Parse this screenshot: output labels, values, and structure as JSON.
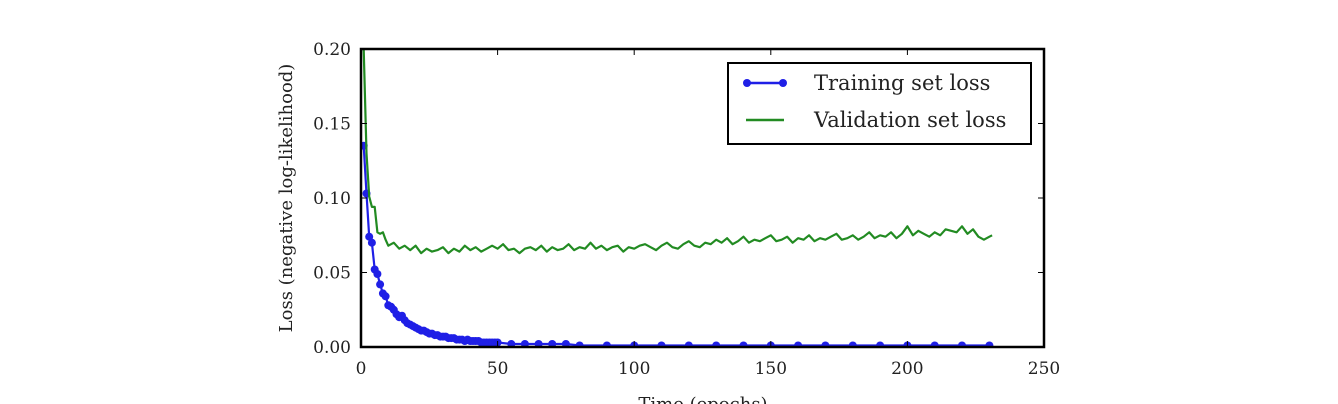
{
  "chart_data": {
    "type": "line",
    "xlabel": "Time (epochs)",
    "ylabel": "Loss (negative log-likelihood)",
    "xlim": [
      0,
      250
    ],
    "ylim": [
      0,
      0.2
    ],
    "x_ticks": [
      "0",
      "50",
      "100",
      "150",
      "200",
      "250"
    ],
    "y_ticks": [
      "0.00",
      "0.05",
      "0.10",
      "0.15",
      "0.20"
    ],
    "grid": false,
    "legend": "top-right",
    "series": [
      {
        "name": "Training set loss",
        "color": "#1f1fe6",
        "marker": "circle",
        "x": [
          1,
          2,
          3,
          4,
          5,
          6,
          7,
          8,
          9,
          10,
          11,
          12,
          13,
          14,
          15,
          16,
          17,
          18,
          19,
          20,
          21,
          22,
          23,
          24,
          25,
          26,
          27,
          28,
          29,
          30,
          31,
          32,
          33,
          34,
          35,
          36,
          37,
          38,
          39,
          40,
          41,
          42,
          43,
          44,
          45,
          46,
          47,
          48,
          49,
          50,
          55,
          60,
          65,
          70,
          75,
          80,
          90,
          100,
          110,
          120,
          130,
          140,
          150,
          160,
          170,
          180,
          190,
          200,
          210,
          220,
          230
        ],
        "y": [
          0.135,
          0.103,
          0.074,
          0.07,
          0.052,
          0.049,
          0.042,
          0.036,
          0.034,
          0.028,
          0.027,
          0.025,
          0.022,
          0.02,
          0.021,
          0.018,
          0.016,
          0.015,
          0.014,
          0.013,
          0.012,
          0.011,
          0.011,
          0.01,
          0.009,
          0.009,
          0.008,
          0.008,
          0.007,
          0.007,
          0.007,
          0.006,
          0.006,
          0.006,
          0.005,
          0.005,
          0.005,
          0.004,
          0.005,
          0.004,
          0.004,
          0.004,
          0.004,
          0.003,
          0.003,
          0.003,
          0.003,
          0.003,
          0.003,
          0.003,
          0.002,
          0.002,
          0.002,
          0.002,
          0.002,
          0.001,
          0.001,
          0.001,
          0.001,
          0.001,
          0.001,
          0.001,
          0.001,
          0.001,
          0.001,
          0.001,
          0.001,
          0.001,
          0.001,
          0.001,
          0.001
        ]
      },
      {
        "name": "Validation set loss",
        "color": "#228b22",
        "marker": "none",
        "x": [
          1,
          2,
          3,
          4,
          5,
          6,
          7,
          8,
          9,
          10,
          12,
          14,
          16,
          18,
          20,
          22,
          24,
          26,
          28,
          30,
          32,
          34,
          36,
          38,
          40,
          42,
          44,
          46,
          48,
          50,
          52,
          54,
          56,
          58,
          60,
          62,
          64,
          66,
          68,
          70,
          72,
          74,
          76,
          78,
          80,
          82,
          84,
          86,
          88,
          90,
          92,
          94,
          96,
          98,
          100,
          102,
          104,
          106,
          108,
          110,
          112,
          114,
          116,
          118,
          120,
          122,
          124,
          126,
          128,
          130,
          132,
          134,
          136,
          138,
          140,
          142,
          144,
          146,
          148,
          150,
          152,
          154,
          156,
          158,
          160,
          162,
          164,
          166,
          168,
          170,
          172,
          174,
          176,
          178,
          180,
          182,
          184,
          186,
          188,
          190,
          192,
          194,
          196,
          198,
          200,
          202,
          204,
          206,
          208,
          210,
          212,
          214,
          216,
          218,
          220,
          222,
          224,
          226,
          228,
          230,
          231
        ],
        "y": [
          0.2,
          0.13,
          0.101,
          0.094,
          0.094,
          0.077,
          0.076,
          0.077,
          0.072,
          0.068,
          0.07,
          0.066,
          0.068,
          0.065,
          0.068,
          0.063,
          0.066,
          0.064,
          0.065,
          0.067,
          0.063,
          0.066,
          0.064,
          0.068,
          0.065,
          0.067,
          0.064,
          0.066,
          0.068,
          0.066,
          0.069,
          0.065,
          0.066,
          0.063,
          0.066,
          0.067,
          0.065,
          0.068,
          0.064,
          0.067,
          0.065,
          0.066,
          0.069,
          0.065,
          0.067,
          0.066,
          0.07,
          0.066,
          0.068,
          0.065,
          0.067,
          0.068,
          0.064,
          0.067,
          0.066,
          0.068,
          0.069,
          0.067,
          0.065,
          0.068,
          0.07,
          0.067,
          0.066,
          0.069,
          0.071,
          0.068,
          0.067,
          0.07,
          0.069,
          0.072,
          0.07,
          0.073,
          0.069,
          0.071,
          0.074,
          0.07,
          0.072,
          0.071,
          0.073,
          0.075,
          0.071,
          0.072,
          0.074,
          0.07,
          0.073,
          0.072,
          0.075,
          0.071,
          0.073,
          0.072,
          0.074,
          0.076,
          0.072,
          0.073,
          0.075,
          0.072,
          0.074,
          0.077,
          0.073,
          0.075,
          0.074,
          0.077,
          0.073,
          0.076,
          0.081,
          0.075,
          0.078,
          0.076,
          0.074,
          0.077,
          0.075,
          0.079,
          0.078,
          0.077,
          0.081,
          0.076,
          0.079,
          0.074,
          0.072,
          0.074,
          0.075
        ]
      }
    ]
  }
}
